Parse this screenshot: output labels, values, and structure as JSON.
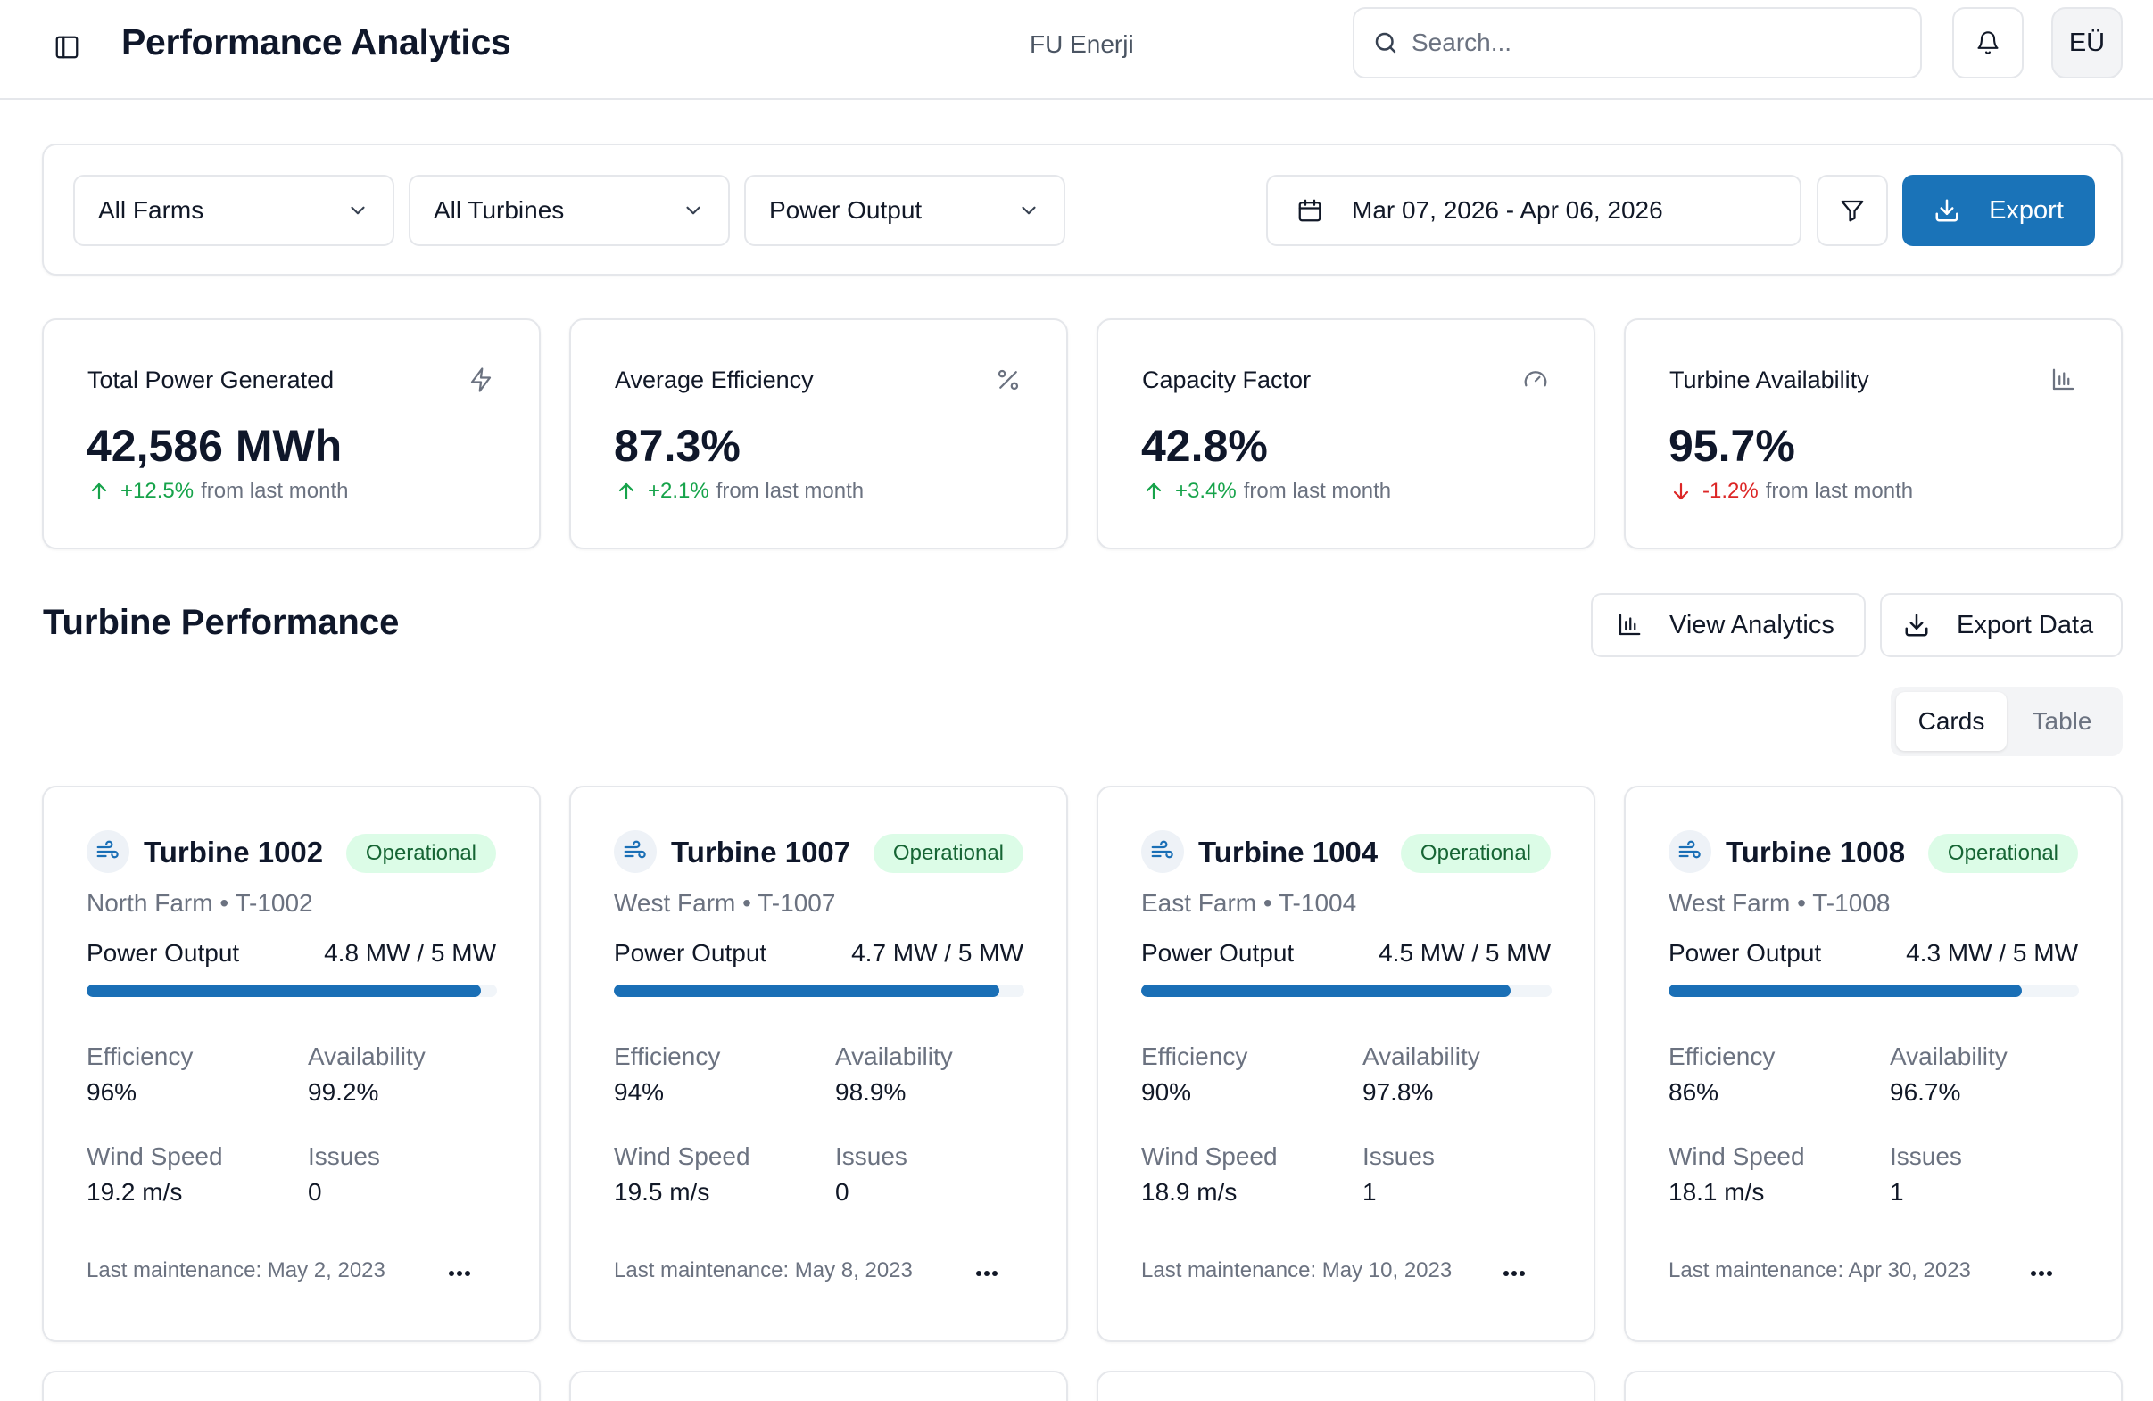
{
  "header": {
    "title": "Performance Analytics",
    "org": "FU Enerji",
    "search_placeholder": "Search...",
    "avatar_initials": "EÜ"
  },
  "filters": {
    "farm": "All Farms",
    "turbine": "All Turbines",
    "metric": "Power Output",
    "date_range": "Mar 07, 2026 - Apr 06, 2026",
    "export_label": "Export"
  },
  "kpis": [
    {
      "title": "Total Power Generated",
      "value": "42,586 MWh",
      "change": "+12.5%",
      "suffix": "from last month",
      "trend": "up",
      "icon": "zap-icon"
    },
    {
      "title": "Average Efficiency",
      "value": "87.3%",
      "change": "+2.1%",
      "suffix": "from last month",
      "trend": "up",
      "icon": "percent-icon"
    },
    {
      "title": "Capacity Factor",
      "value": "42.8%",
      "change": "+3.4%",
      "suffix": "from last month",
      "trend": "up",
      "icon": "gauge-icon"
    },
    {
      "title": "Turbine Availability",
      "value": "95.7%",
      "change": "-1.2%",
      "suffix": "from last month",
      "trend": "down",
      "icon": "bar-chart-icon"
    }
  ],
  "section": {
    "title": "Turbine Performance",
    "view_analytics": "View Analytics",
    "export_data": "Export Data",
    "view_cards": "Cards",
    "view_table": "Table"
  },
  "labels": {
    "power_output": "Power Output",
    "efficiency": "Efficiency",
    "availability": "Availability",
    "wind_speed": "Wind Speed",
    "issues": "Issues"
  },
  "turbines": [
    {
      "name": "Turbine 1002",
      "status": "Operational",
      "farm": "North Farm",
      "id": "T-1002",
      "power": "4.8 MW / 5 MW",
      "power_fraction": 0.96,
      "efficiency": "96%",
      "availability": "99.2%",
      "wind_speed": "19.2 m/s",
      "issues": "0",
      "maintenance": "Last maintenance: May 2, 2023"
    },
    {
      "name": "Turbine 1007",
      "status": "Operational",
      "farm": "West Farm",
      "id": "T-1007",
      "power": "4.7 MW / 5 MW",
      "power_fraction": 0.94,
      "efficiency": "94%",
      "availability": "98.9%",
      "wind_speed": "19.5 m/s",
      "issues": "0",
      "maintenance": "Last maintenance: May 8, 2023"
    },
    {
      "name": "Turbine 1004",
      "status": "Operational",
      "farm": "East Farm",
      "id": "T-1004",
      "power": "4.5 MW / 5 MW",
      "power_fraction": 0.9,
      "efficiency": "90%",
      "availability": "97.8%",
      "wind_speed": "18.9 m/s",
      "issues": "1",
      "maintenance": "Last maintenance: May 10, 2023"
    },
    {
      "name": "Turbine 1008",
      "status": "Operational",
      "farm": "West Farm",
      "id": "T-1008",
      "power": "4.3 MW / 5 MW",
      "power_fraction": 0.86,
      "efficiency": "86%",
      "availability": "96.7%",
      "wind_speed": "18.1 m/s",
      "issues": "1",
      "maintenance": "Last maintenance: Apr 30, 2023"
    }
  ],
  "colors": {
    "accent": "#1a73b8",
    "bar": "#1a6fb6",
    "up": "#16a34a",
    "down": "#dc2626",
    "status_bg": "#dcfce7",
    "status_text": "#166534"
  }
}
